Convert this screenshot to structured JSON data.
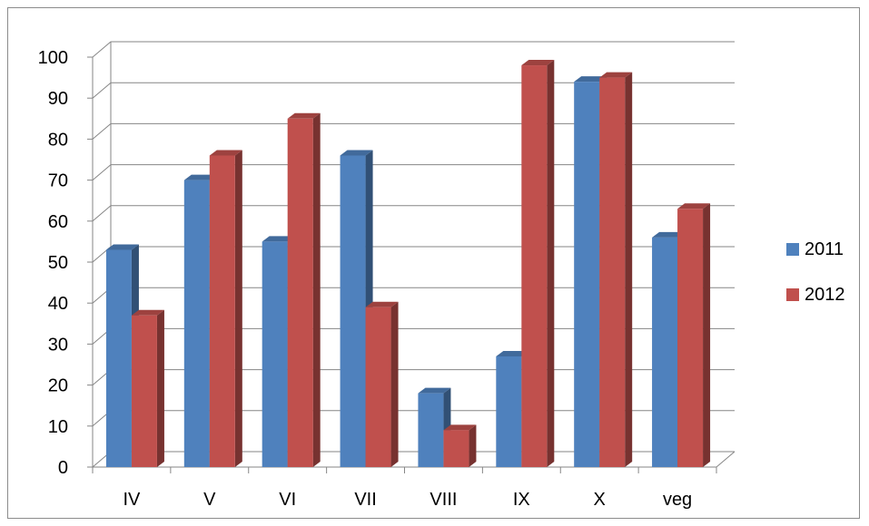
{
  "chart_data": {
    "type": "bar",
    "categories": [
      "IV",
      "V",
      "VI",
      "VII",
      "VIII",
      "IX",
      "X",
      "veg"
    ],
    "series": [
      {
        "name": "2011",
        "color": "#4f81bd",
        "values": [
          53,
          70,
          55,
          76,
          18,
          27,
          94,
          56
        ]
      },
      {
        "name": "2012",
        "color": "#c0504d",
        "values": [
          37,
          76,
          85,
          39,
          9,
          98,
          95,
          63
        ]
      }
    ],
    "yticks": [
      0,
      10,
      20,
      30,
      40,
      50,
      60,
      70,
      80,
      90,
      100
    ],
    "ylim": [
      0,
      100
    ],
    "grid": true,
    "legend_position": "right",
    "style": "3d-clustered-column"
  }
}
